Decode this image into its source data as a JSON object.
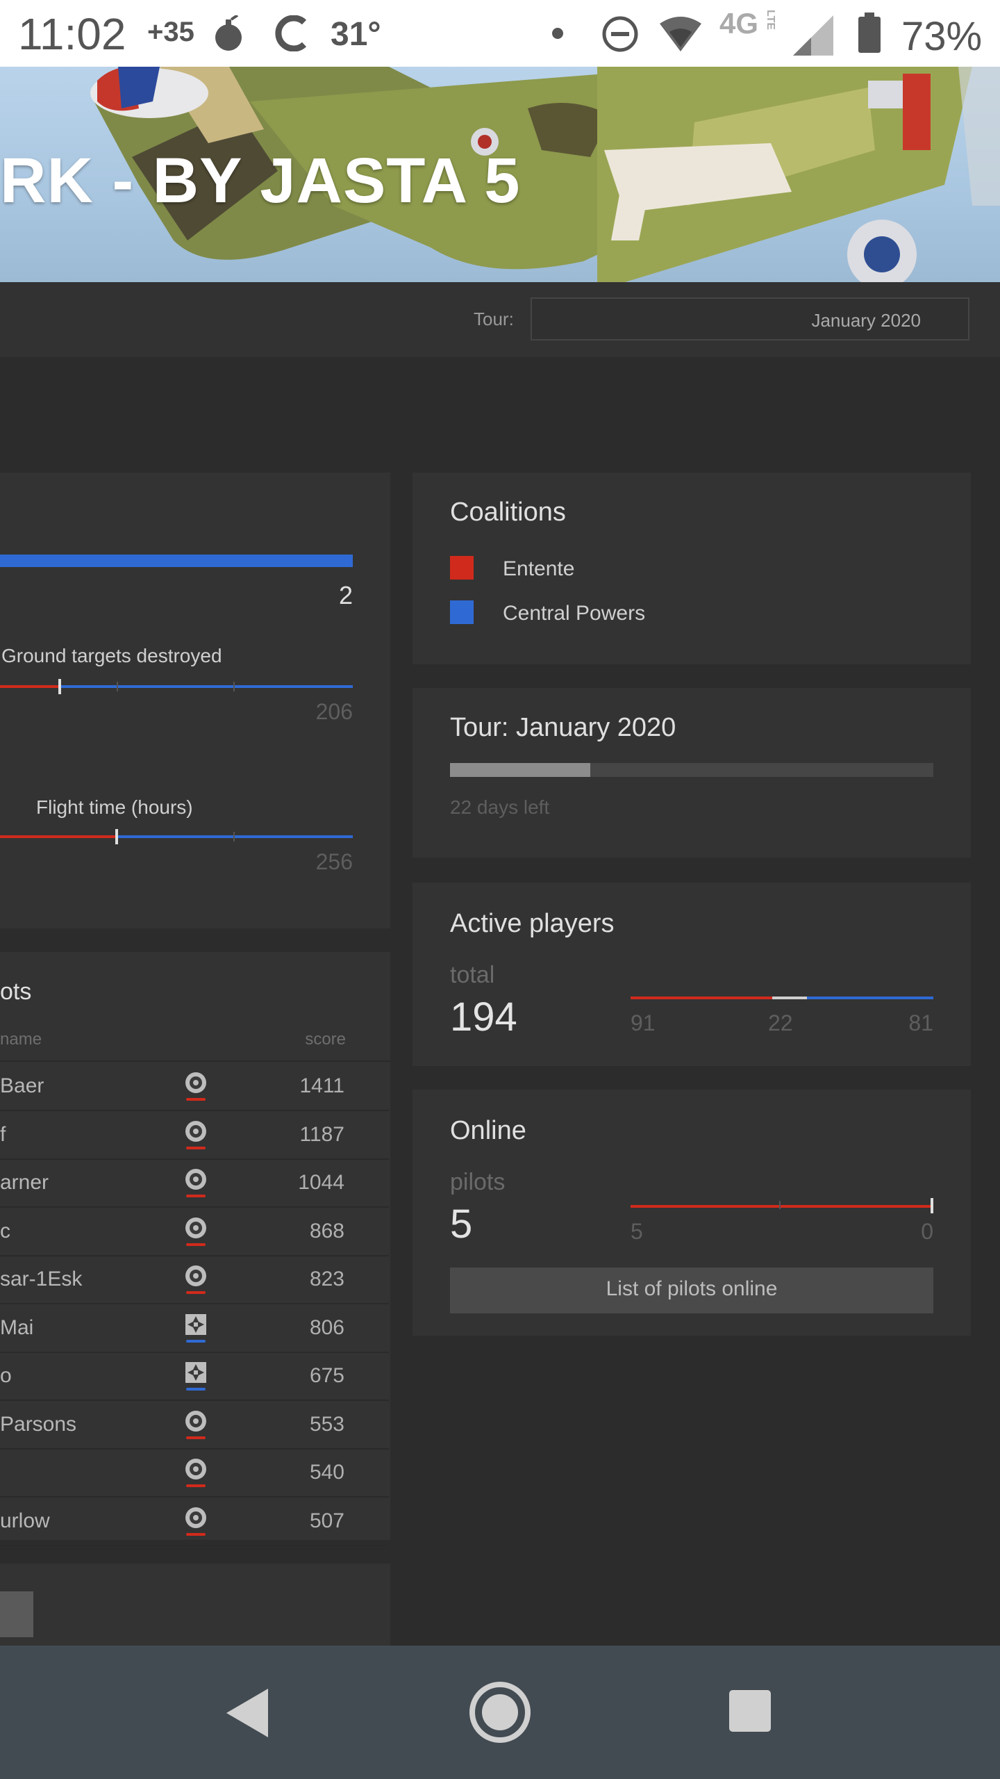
{
  "status_bar": {
    "time": "11:02",
    "notif_temp_badge": "+35",
    "weather_temp": "31°",
    "network": "4G",
    "network_sub": "LTE",
    "battery": "73%"
  },
  "banner": {
    "title": "RK - BY JASTA 5"
  },
  "tour_filter": {
    "label": "Tour:",
    "selected": "January 2020"
  },
  "overview": {
    "top_value": "2",
    "stats": [
      {
        "label": "Ground targets destroyed",
        "value": "206",
        "red_fraction": 0.17
      },
      {
        "label": "Flight time (hours)",
        "value": "256",
        "red_fraction": 0.33
      }
    ]
  },
  "coalitions": {
    "title": "Coalitions",
    "items": [
      {
        "label": "Entente",
        "color": "#d02a1c"
      },
      {
        "label": "Central Powers",
        "color": "#2f6ad4"
      }
    ]
  },
  "tour_panel": {
    "title": "Tour: January 2020",
    "progress": 0.29,
    "days_left": "22 days left"
  },
  "active_players": {
    "title": "Active players",
    "label": "total",
    "total": "194",
    "entente": "91",
    "neutral": "22",
    "central": "81"
  },
  "online": {
    "title": "Online",
    "label": "pilots",
    "count": "5",
    "entente": "5",
    "central": "0",
    "button": "List of pilots online"
  },
  "pilots": {
    "title": "ots",
    "col_name": "name",
    "col_score": "score",
    "rows": [
      {
        "name": "Baer",
        "score": "1411",
        "side": "entente"
      },
      {
        "name": "f",
        "score": "1187",
        "side": "entente"
      },
      {
        "name": "arner",
        "score": "1044",
        "side": "entente"
      },
      {
        "name": "c",
        "score": "868",
        "side": "entente"
      },
      {
        "name": "sar-1Esk",
        "score": "823",
        "side": "entente"
      },
      {
        "name": "Mai",
        "score": "806",
        "side": "central"
      },
      {
        "name": "o",
        "score": "675",
        "side": "central"
      },
      {
        "name": "Parsons",
        "score": "553",
        "side": "entente"
      },
      {
        "name": "",
        "score": "540",
        "side": "entente"
      },
      {
        "name": "urlow",
        "score": "507",
        "side": "entente"
      }
    ]
  },
  "colors": {
    "entente": "#d02a1c",
    "central": "#2f6ad4",
    "background": "#2c2c2c",
    "panel": "#333333"
  }
}
